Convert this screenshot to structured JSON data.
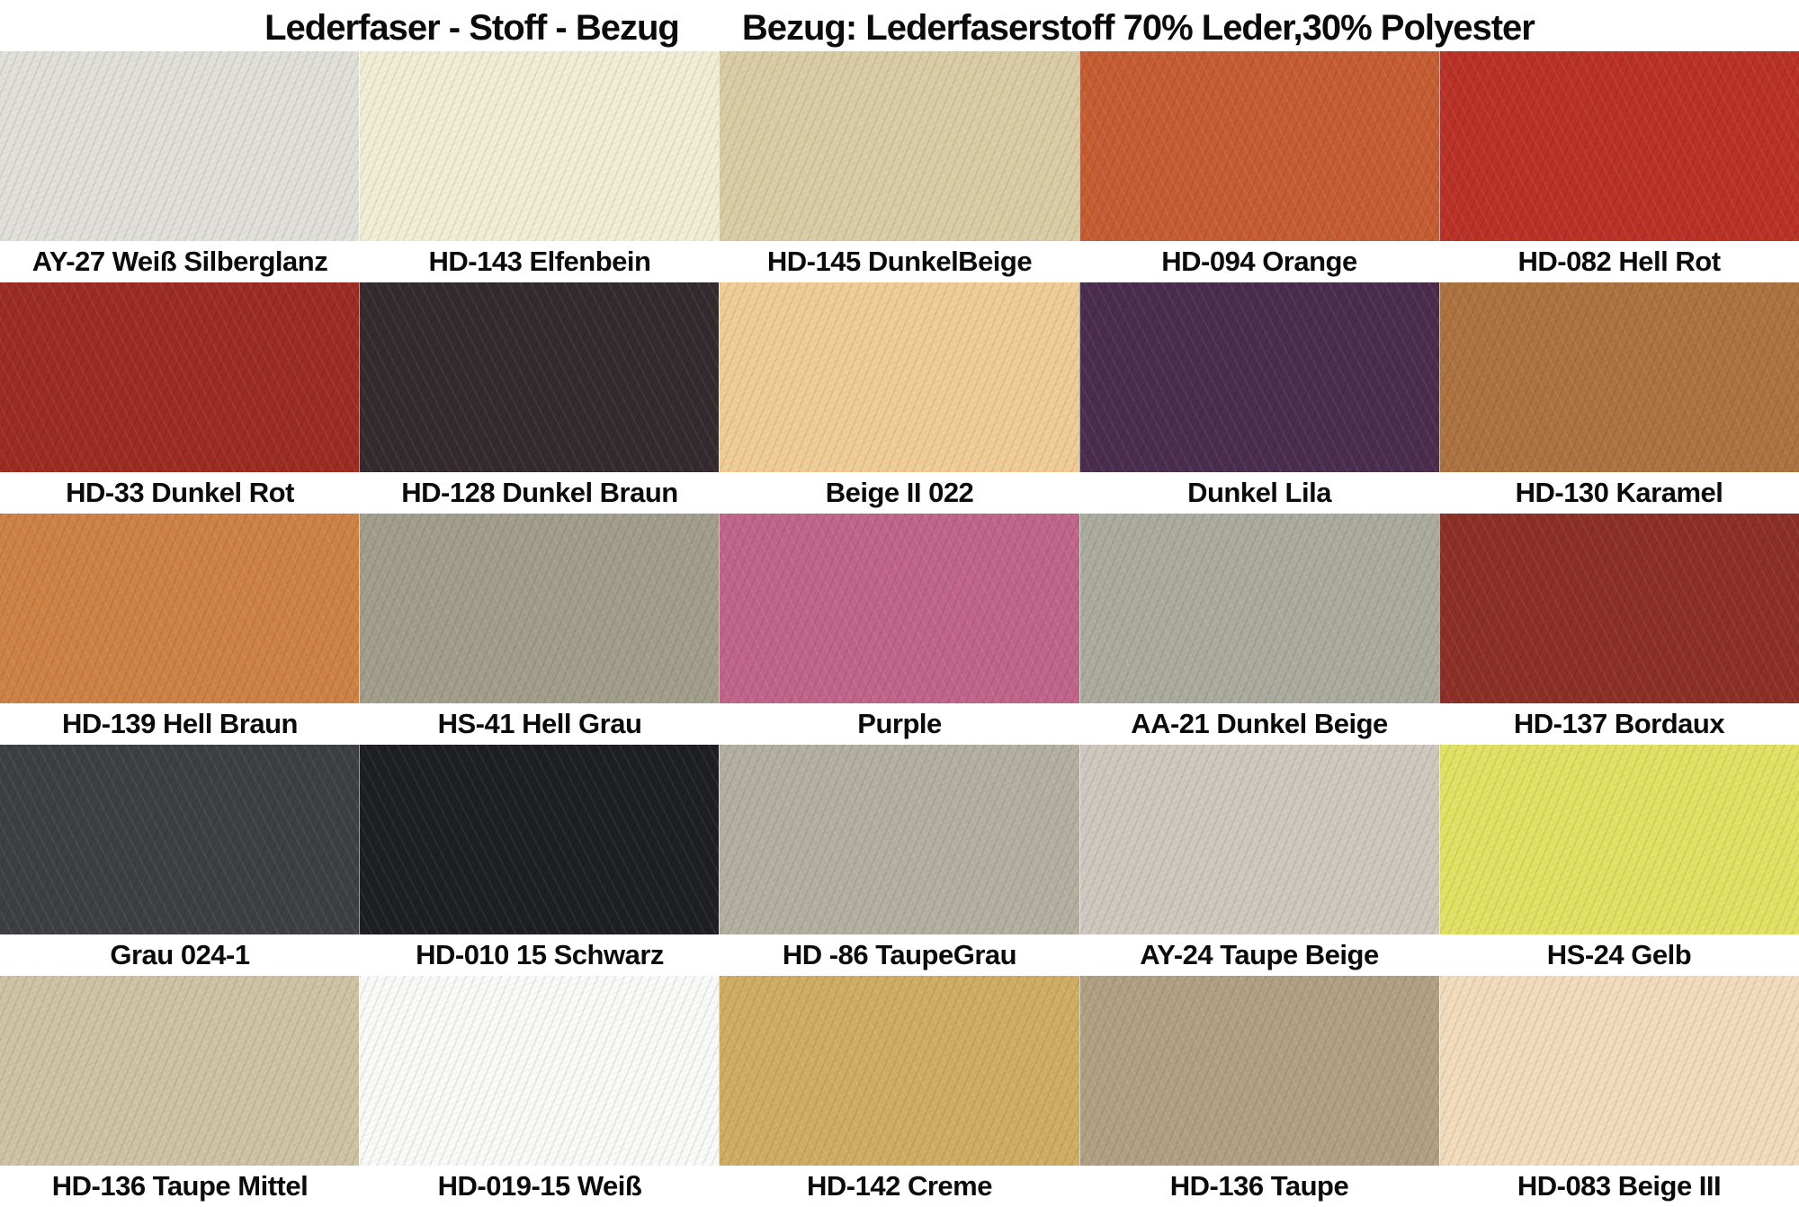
{
  "title": {
    "left": "Lederfaser  - Stoff - Bezug",
    "right": "Bezug: Lederfaserstoff 70% Leder,30% Polyester"
  },
  "chart_data": {
    "type": "table",
    "title": "Lederfaser - Stoff - Bezug — Bezug: Lederfaserstoff 70% Leder,30% Polyester",
    "description": "5x5 grid of leather-fiber fabric color swatches with name labels",
    "rows": [
      [
        {
          "label": "AY-27 Weiß Silberglanz",
          "color": "#e1e0da"
        },
        {
          "label": "HD-143 Elfenbein",
          "color": "#f2eed4"
        },
        {
          "label": "HD-145 DunkelBeige",
          "color": "#dacda6"
        },
        {
          "label": "HD-094 Orange",
          "color": "#c75d33"
        },
        {
          "label": "HD-082 Hell Rot",
          "color": "#bb3226"
        }
      ],
      [
        {
          "label": "HD-33 Dunkel Rot",
          "color": "#9d2c23"
        },
        {
          "label": "HD-128 Dunkel Braun",
          "color": "#342b2e"
        },
        {
          "label": "Beige II 022",
          "color": "#f0cd97"
        },
        {
          "label": "Dunkel Lila",
          "color": "#4b2d4e"
        },
        {
          "label": "HD-130 Karamel",
          "color": "#ad7340"
        }
      ],
      [
        {
          "label": "HD-139 Hell Braun",
          "color": "#cf8245"
        },
        {
          "label": "HS-41 Hell Grau",
          "color": "#a29e8b"
        },
        {
          "label": "Purple",
          "color": "#c1658b"
        },
        {
          "label": "AA-21 Dunkel Beige",
          "color": "#abab9e"
        },
        {
          "label": "HD-137 Bordaux",
          "color": "#8d3027"
        }
      ],
      [
        {
          "label": "Grau 024-1",
          "color": "#3d4043"
        },
        {
          "label": "HD-010 15 Schwarz",
          "color": "#1d1f23"
        },
        {
          "label": "HD -86 TaupeGrau",
          "color": "#b4b0a0"
        },
        {
          "label": "AY-24 Taupe Beige",
          "color": "#cfc8be"
        },
        {
          "label": "HS-24 Gelb",
          "color": "#e1e264"
        }
      ],
      [
        {
          "label": "HD-136 Taupe Mittel",
          "color": "#cfc3a4"
        },
        {
          "label": "HD-019-15 Weiß",
          "color": "#fafaf8"
        },
        {
          "label": "HD-142 Creme",
          "color": "#d1ad63"
        },
        {
          "label": "HD-136 Taupe",
          "color": "#b2a082"
        },
        {
          "label": "HD-083 Beige III",
          "color": "#f2dcbb"
        }
      ]
    ]
  }
}
